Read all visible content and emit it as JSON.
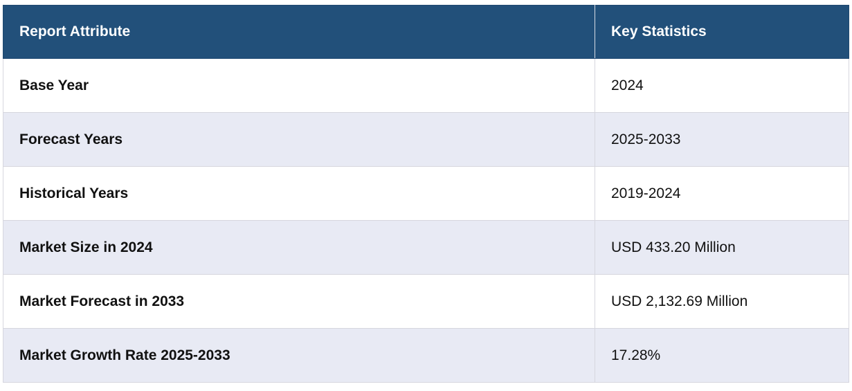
{
  "table": {
    "header": {
      "attribute": "Report Attribute",
      "statistics": "Key Statistics"
    },
    "rows": [
      {
        "attribute": "Base Year",
        "value": "2024"
      },
      {
        "attribute": "Forecast Years",
        "value": "2025-2033"
      },
      {
        "attribute": "Historical Years",
        "value": "2019-2024"
      },
      {
        "attribute": "Market Size in 2024",
        "value": "USD 433.20 Million"
      },
      {
        "attribute": "Market Forecast in 2033",
        "value": "USD 2,132.69 Million"
      },
      {
        "attribute": "Market Growth Rate 2025-2033",
        "value": "17.28%"
      }
    ],
    "colors": {
      "header_bg": "#22507a",
      "header_text": "#ffffff",
      "row_alt_bg": "#e8eaf4",
      "row_bg": "#ffffff"
    }
  }
}
